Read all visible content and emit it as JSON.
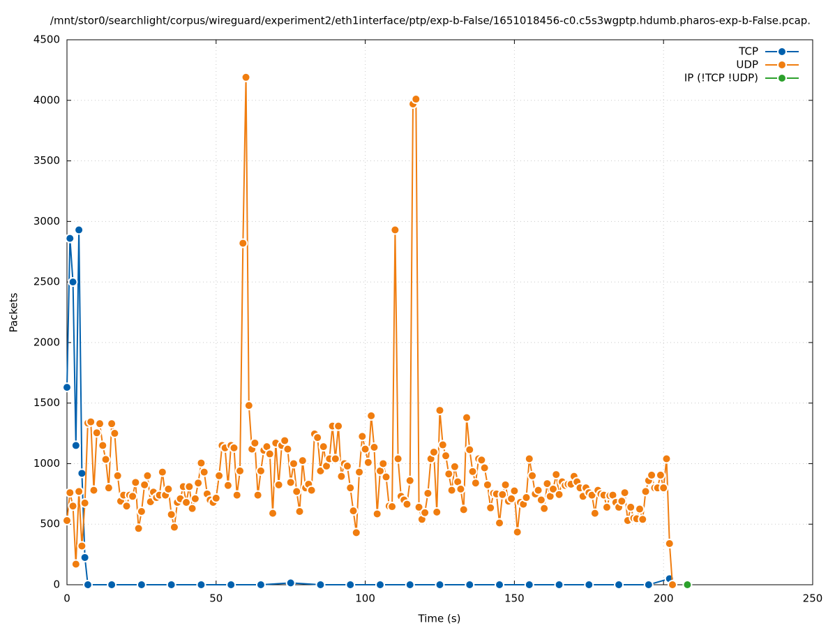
{
  "chart_data": {
    "type": "line",
    "title": "/mnt/stor0/searchlight/corpus/wireguard/experiment2/eth1interface/ptp/exp-b-False/1651018456-c0.c5s3wgptp.hdumb.pharos-exp-b-False.pcap.",
    "xlabel": "Time (s)",
    "ylabel": "Packets",
    "xlim": [
      0,
      250
    ],
    "xticks": [
      0,
      50,
      100,
      150,
      200,
      250
    ],
    "ylim": [
      0,
      4500
    ],
    "yticks": [
      0,
      500,
      1000,
      1500,
      2000,
      2500,
      3000,
      3500,
      4000,
      4500
    ],
    "grid": true,
    "legend": "upper right",
    "series": [
      {
        "name": "TCP",
        "color": "#0060ad",
        "x": [
          0,
          1,
          2,
          3,
          4,
          5,
          6,
          7,
          15,
          25,
          35,
          45,
          55,
          65,
          75,
          85,
          95,
          105,
          115,
          125,
          135,
          145,
          155,
          165,
          175,
          185,
          195,
          202
        ],
        "values": [
          1630,
          2860,
          2500,
          1150,
          2930,
          920,
          225,
          0,
          0,
          0,
          0,
          0,
          0,
          0,
          15,
          0,
          0,
          0,
          0,
          0,
          0,
          0,
          0,
          0,
          0,
          0,
          0,
          50
        ]
      },
      {
        "name": "UDP",
        "color": "#f07d0f",
        "x": [
          0,
          1,
          2,
          3,
          4,
          5,
          6,
          7,
          8,
          9,
          10,
          11,
          12,
          13,
          14,
          15,
          16,
          17,
          18,
          19,
          20,
          21,
          22,
          23,
          24,
          25,
          26,
          27,
          28,
          29,
          30,
          31,
          32,
          33,
          34,
          35,
          36,
          37,
          38,
          39,
          40,
          41,
          42,
          43,
          44,
          45,
          46,
          47,
          48,
          49,
          50,
          51,
          52,
          53,
          54,
          55,
          56,
          57,
          58,
          59,
          60,
          61,
          62,
          63,
          64,
          65,
          66,
          67,
          68,
          69,
          70,
          71,
          72,
          73,
          74,
          75,
          76,
          77,
          78,
          79,
          80,
          81,
          82,
          83,
          84,
          85,
          86,
          87,
          88,
          89,
          90,
          91,
          92,
          93,
          94,
          95,
          96,
          97,
          98,
          99,
          100,
          101,
          102,
          103,
          104,
          105,
          106,
          107,
          108,
          109,
          110,
          111,
          112,
          113,
          114,
          115,
          116,
          117,
          118,
          119,
          120,
          121,
          122,
          123,
          124,
          125,
          126,
          127,
          128,
          129,
          130,
          131,
          132,
          133,
          134,
          135,
          136,
          137,
          138,
          139,
          140,
          141,
          142,
          143,
          144,
          145,
          146,
          147,
          148,
          149,
          150,
          151,
          152,
          153,
          154,
          155,
          156,
          157,
          158,
          159,
          160,
          161,
          162,
          163,
          164,
          165,
          166,
          167,
          168,
          169,
          170,
          171,
          172,
          173,
          174,
          175,
          176,
          177,
          178,
          179,
          180,
          181,
          182,
          183,
          184,
          185,
          186,
          187,
          188,
          189,
          190,
          191,
          192,
          193,
          194,
          195,
          196,
          197,
          198,
          199,
          200,
          201,
          202,
          203
        ],
        "values": [
          530,
          760,
          650,
          170,
          770,
          320,
          675,
          1335,
          1345,
          780,
          1255,
          1330,
          1150,
          1035,
          800,
          1330,
          1250,
          900,
          690,
          740,
          650,
          740,
          730,
          845,
          465,
          605,
          825,
          900,
          685,
          765,
          720,
          740,
          930,
          740,
          790,
          580,
          475,
          680,
          710,
          810,
          680,
          810,
          630,
          710,
          840,
          1005,
          930,
          750,
          700,
          680,
          715,
          900,
          1150,
          1130,
          820,
          1150,
          1130,
          740,
          940,
          2820,
          4190,
          1480,
          1120,
          1170,
          740,
          940,
          1110,
          1140,
          1080,
          590,
          1170,
          825,
          1150,
          1190,
          1120,
          845,
          1000,
          770,
          605,
          1025,
          800,
          830,
          780,
          1245,
          1215,
          940,
          1140,
          980,
          1040,
          1310,
          1040,
          1310,
          895,
          1000,
          980,
          800,
          610,
          430,
          930,
          1225,
          1120,
          1010,
          1395,
          1135,
          585,
          940,
          1000,
          890,
          650,
          645,
          2930,
          1040,
          730,
          700,
          665,
          860,
          3970,
          4010,
          640,
          540,
          595,
          755,
          1040,
          1095,
          600,
          1440,
          1155,
          1065,
          915,
          780,
          975,
          850,
          790,
          620,
          1380,
          1115,
          935,
          840,
          1040,
          1030,
          965,
          825,
          635,
          755,
          750,
          510,
          745,
          825,
          690,
          710,
          775,
          435,
          680,
          665,
          720,
          1040,
          900,
          750,
          780,
          700,
          630,
          835,
          730,
          790,
          910,
          745,
          850,
          820,
          830,
          830,
          895,
          850,
          800,
          730,
          800,
          760,
          740,
          590,
          780,
          750,
          740,
          640,
          735,
          740,
          680,
          640,
          690,
          760,
          530,
          640,
          550,
          545,
          625,
          540,
          770,
          860,
          905,
          800,
          800,
          905,
          800,
          1040,
          340,
          0
        ]
      },
      {
        "name": "IP (!TCP  !UDP)",
        "color": "#2ca02c",
        "x": [
          208
        ],
        "values": [
          0
        ]
      }
    ]
  }
}
